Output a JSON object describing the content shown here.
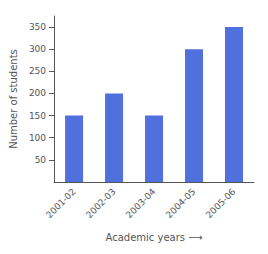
{
  "chart_data": {
    "type": "bar",
    "categories": [
      "2001-02",
      "2002-03",
      "2003-04",
      "2004-05",
      "2005-06"
    ],
    "values": [
      150,
      200,
      150,
      300,
      350
    ],
    "xlabel": "Academic years ⟶",
    "ylabel": "Number of students",
    "ylim": [
      0,
      375
    ],
    "yticks": [
      50,
      100,
      150,
      200,
      250,
      300,
      350
    ],
    "grid": false
  }
}
